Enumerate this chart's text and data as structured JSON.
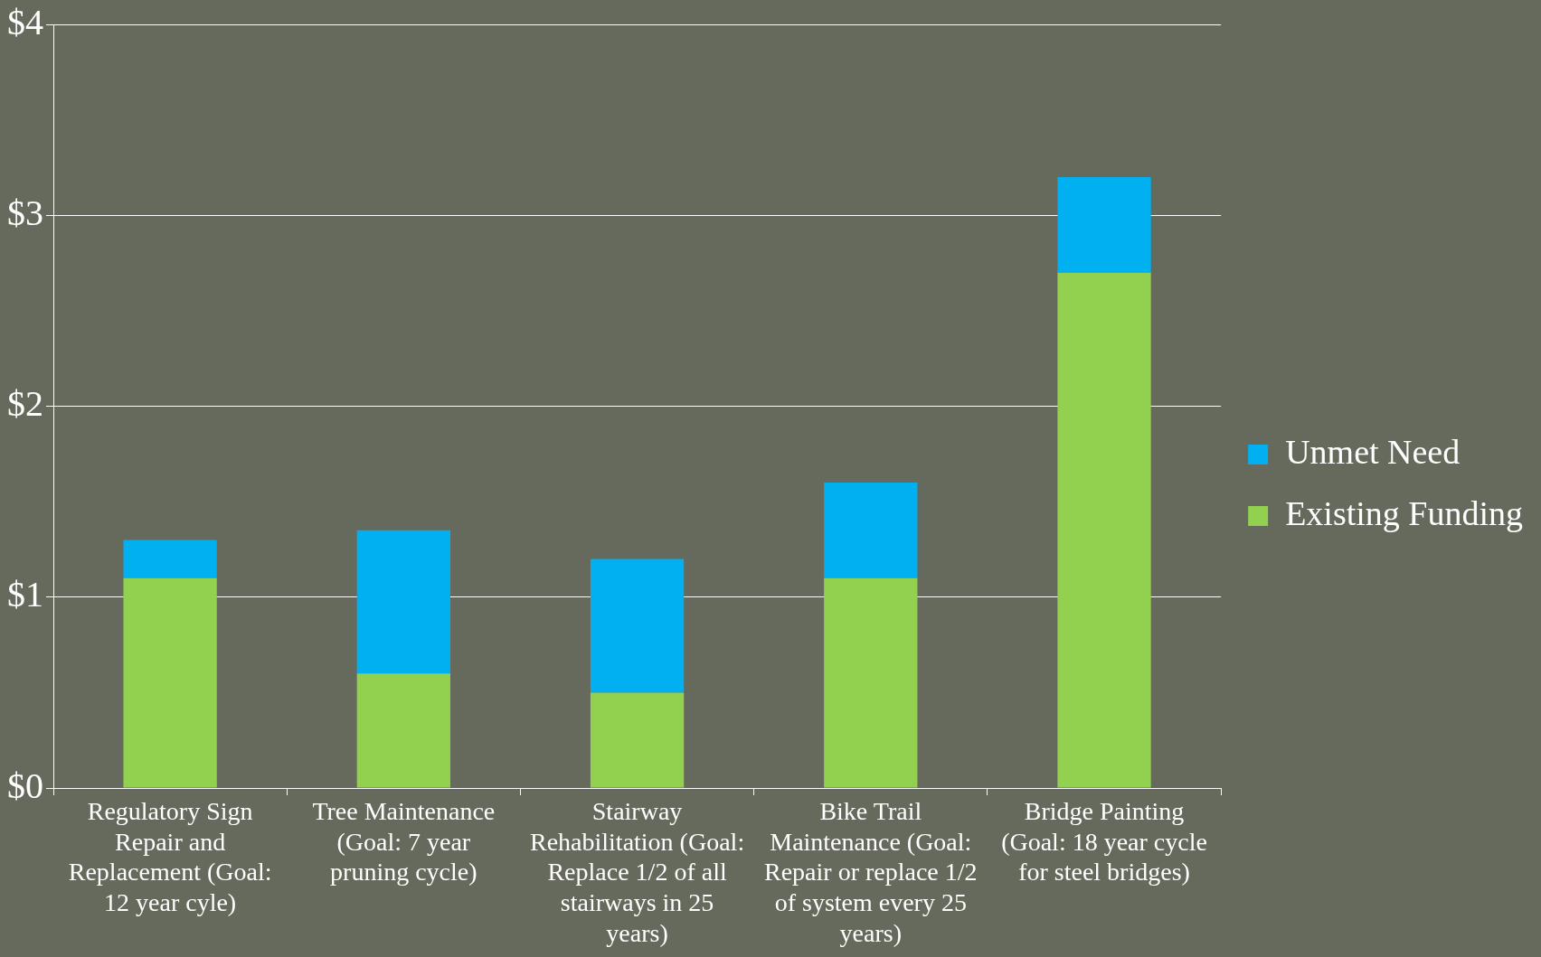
{
  "chart_data": {
    "type": "bar",
    "stacked": true,
    "categories": [
      "Regulatory Sign Repair and Replacement (Goal: 12 year cyle)",
      "Tree Maintenance (Goal: 7 year pruning cycle)",
      "Stairway Rehabilitation (Goal: Replace 1/2 of all stairways in 25 years)",
      "Bike Trail Maintenance (Goal: Repair or replace 1/2 of system every 25 years)",
      "Bridge Painting (Goal: 18 year cycle for steel bridges)"
    ],
    "series": [
      {
        "name": "Existing Funding",
        "color": "#92d050",
        "values": [
          1.1,
          0.6,
          0.5,
          1.1,
          2.7
        ]
      },
      {
        "name": "Unmet Need",
        "color": "#00b0f0",
        "values": [
          0.2,
          0.75,
          0.7,
          0.5,
          0.5
        ]
      }
    ],
    "ylim": [
      0,
      4
    ],
    "yticks": [
      {
        "value": 0,
        "label": "$0"
      },
      {
        "value": 1,
        "label": "$1"
      },
      {
        "value": 2,
        "label": "$2"
      },
      {
        "value": 3,
        "label": "$3"
      },
      {
        "value": 4,
        "label": "$4"
      }
    ],
    "grid": "y",
    "legend": "right"
  }
}
